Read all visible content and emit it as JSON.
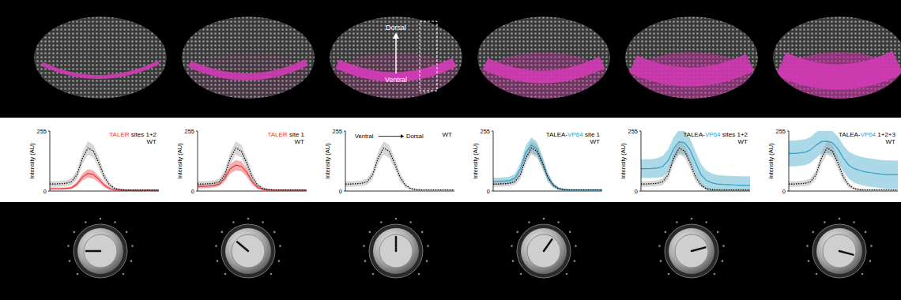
{
  "image_labels": {
    "top": "Dorsal",
    "bottom": "Ventral"
  },
  "chart_data": [
    {
      "type": "line",
      "ylabel": "Intensity (AU)",
      "xlim": [
        0,
        100
      ],
      "ylim": [
        0,
        255
      ],
      "yticks": [
        0,
        255
      ],
      "tick_labels": "y",
      "grid": false,
      "legend": "upper right",
      "x": [
        0,
        5,
        10,
        15,
        20,
        25,
        30,
        35,
        40,
        45,
        50,
        55,
        60,
        65,
        70,
        75,
        80,
        85,
        90,
        95,
        100
      ],
      "series": [
        {
          "name": "TALER sites 1+2",
          "color": "#e8383d",
          "line_style": "solid",
          "values": [
            10,
            10,
            10,
            11,
            14,
            30,
            60,
            75,
            70,
            50,
            25,
            10,
            5,
            4,
            3,
            3,
            3,
            3,
            3,
            3,
            3
          ],
          "errors": [
            5,
            5,
            5,
            5,
            6,
            10,
            15,
            18,
            17,
            14,
            10,
            6,
            3,
            2,
            2,
            2,
            2,
            2,
            2,
            2,
            2
          ]
        },
        {
          "name": "WT",
          "color": "#000000",
          "line_style": "dotted",
          "values": [
            30,
            30,
            31,
            33,
            40,
            70,
            140,
            183,
            170,
            120,
            60,
            25,
            10,
            6,
            5,
            5,
            5,
            5,
            5,
            5,
            5
          ],
          "errors": [
            12,
            12,
            12,
            12,
            14,
            20,
            25,
            28,
            27,
            24,
            18,
            10,
            6,
            4,
            3,
            3,
            3,
            3,
            3,
            3,
            3
          ]
        }
      ]
    },
    {
      "type": "line",
      "ylabel": "Intensity (AU)",
      "xlim": [
        0,
        100
      ],
      "ylim": [
        0,
        255
      ],
      "yticks": [
        0,
        255
      ],
      "tick_labels": "y",
      "grid": false,
      "legend": "upper right",
      "x": [
        0,
        5,
        10,
        15,
        20,
        25,
        30,
        35,
        40,
        45,
        50,
        55,
        60,
        65,
        70,
        75,
        80,
        85,
        90,
        95,
        100
      ],
      "series": [
        {
          "name": "TALER site 1",
          "color": "#e8383d",
          "line_style": "solid",
          "values": [
            20,
            20,
            21,
            23,
            30,
            55,
            95,
            110,
            105,
            80,
            40,
            15,
            7,
            5,
            4,
            4,
            4,
            4,
            4,
            4,
            4
          ],
          "errors": [
            8,
            8,
            8,
            8,
            9,
            14,
            20,
            22,
            21,
            18,
            12,
            7,
            4,
            3,
            2,
            2,
            2,
            2,
            2,
            2,
            2
          ]
        },
        {
          "name": "WT",
          "color": "#000000",
          "line_style": "dotted",
          "values": [
            30,
            30,
            31,
            33,
            40,
            70,
            140,
            183,
            170,
            120,
            60,
            25,
            10,
            6,
            5,
            5,
            5,
            5,
            5,
            5,
            5
          ],
          "errors": [
            12,
            12,
            12,
            12,
            14,
            20,
            25,
            28,
            27,
            24,
            18,
            10,
            6,
            4,
            3,
            3,
            3,
            3,
            3,
            3,
            3
          ]
        }
      ]
    },
    {
      "type": "line",
      "ylabel": "Intensity (AU)",
      "xlim": [
        0,
        100
      ],
      "ylim": [
        0,
        255
      ],
      "yticks": [
        0,
        255
      ],
      "tick_labels": "y",
      "grid": false,
      "legend": "upper right",
      "annotations": [
        "Ventral",
        "Dorsal"
      ],
      "x": [
        0,
        5,
        10,
        15,
        20,
        25,
        30,
        35,
        40,
        45,
        50,
        55,
        60,
        65,
        70,
        75,
        80,
        85,
        90,
        95,
        100
      ],
      "series": [
        {
          "name": "WT",
          "color": "#000000",
          "line_style": "dotted",
          "values": [
            30,
            30,
            31,
            33,
            40,
            70,
            140,
            183,
            170,
            120,
            60,
            25,
            10,
            6,
            5,
            5,
            5,
            5,
            5,
            5,
            5
          ],
          "errors": [
            12,
            12,
            12,
            12,
            14,
            20,
            25,
            28,
            27,
            24,
            18,
            10,
            6,
            4,
            3,
            3,
            3,
            3,
            3,
            3,
            3
          ]
        }
      ]
    },
    {
      "type": "line",
      "ylabel": "Intensity (AU)",
      "xlim": [
        0,
        100
      ],
      "ylim": [
        0,
        255
      ],
      "yticks": [
        0,
        255
      ],
      "tick_labels": "y",
      "grid": false,
      "legend": "upper right",
      "x": [
        0,
        5,
        10,
        15,
        20,
        25,
        30,
        35,
        40,
        45,
        50,
        55,
        60,
        65,
        70,
        75,
        80,
        85,
        90,
        95,
        100
      ],
      "series": [
        {
          "name": "TALEA-VP64 site 1",
          "color": "#2f9fc4",
          "line_style": "solid",
          "values": [
            42,
            42,
            43,
            45,
            55,
            95,
            165,
            195,
            180,
            125,
            60,
            25,
            10,
            6,
            5,
            5,
            5,
            5,
            5,
            5,
            5
          ],
          "errors": [
            15,
            15,
            15,
            16,
            18,
            25,
            30,
            32,
            30,
            25,
            18,
            10,
            6,
            4,
            3,
            3,
            3,
            3,
            3,
            3,
            3
          ]
        },
        {
          "name": "WT",
          "color": "#000000",
          "line_style": "dotted",
          "values": [
            30,
            30,
            31,
            33,
            40,
            70,
            140,
            183,
            170,
            120,
            60,
            25,
            10,
            6,
            5,
            5,
            5,
            5,
            5,
            5,
            5
          ],
          "errors": [
            12,
            12,
            12,
            12,
            14,
            20,
            25,
            28,
            27,
            24,
            18,
            10,
            6,
            4,
            3,
            3,
            3,
            3,
            3,
            3,
            3
          ]
        }
      ]
    },
    {
      "type": "line",
      "ylabel": "Intensity (AU)",
      "xlim": [
        0,
        100
      ],
      "ylim": [
        0,
        255
      ],
      "yticks": [
        0,
        255
      ],
      "tick_labels": "y",
      "grid": false,
      "legend": "upper right",
      "x": [
        0,
        5,
        10,
        15,
        20,
        25,
        30,
        35,
        40,
        45,
        50,
        55,
        60,
        65,
        70,
        75,
        80,
        85,
        90,
        95,
        100
      ],
      "series": [
        {
          "name": "TALEA-VP64 sites 1+2",
          "color": "#2f9fc4",
          "line_style": "solid",
          "values": [
            95,
            95,
            96,
            98,
            105,
            130,
            180,
            210,
            205,
            175,
            120,
            70,
            45,
            35,
            30,
            28,
            27,
            26,
            25,
            25,
            25
          ],
          "errors": [
            40,
            40,
            40,
            42,
            45,
            48,
            50,
            50,
            50,
            50,
            48,
            45,
            42,
            40,
            38,
            38,
            38,
            38,
            38,
            38,
            38
          ]
        },
        {
          "name": "WT",
          "color": "#000000",
          "line_style": "dotted",
          "values": [
            30,
            30,
            31,
            33,
            40,
            70,
            140,
            183,
            170,
            120,
            60,
            25,
            10,
            6,
            5,
            5,
            5,
            5,
            5,
            5,
            5
          ],
          "errors": [
            12,
            12,
            12,
            12,
            14,
            20,
            25,
            28,
            27,
            24,
            18,
            10,
            6,
            4,
            3,
            3,
            3,
            3,
            3,
            3,
            3
          ]
        }
      ]
    },
    {
      "type": "line",
      "ylabel": "Intensity (AU)",
      "xlim": [
        0,
        100
      ],
      "ylim": [
        0,
        255
      ],
      "yticks": [
        0,
        255
      ],
      "tick_labels": "y",
      "grid": false,
      "legend": "upper right",
      "x": [
        0,
        5,
        10,
        15,
        20,
        25,
        30,
        35,
        40,
        45,
        50,
        55,
        60,
        65,
        70,
        75,
        80,
        85,
        90,
        95,
        100
      ],
      "series": [
        {
          "name": "TALEA-VP64 1+2+3",
          "color": "#2f9fc4",
          "line_style": "solid",
          "values": [
            160,
            160,
            162,
            165,
            175,
            195,
            210,
            212,
            205,
            180,
            140,
            110,
            95,
            88,
            82,
            78,
            75,
            72,
            70,
            70,
            70
          ],
          "errors": [
            55,
            55,
            55,
            55,
            55,
            55,
            52,
            50,
            50,
            52,
            55,
            58,
            60,
            60,
            60,
            60,
            60,
            60,
            60,
            60,
            60
          ]
        },
        {
          "name": "WT",
          "color": "#000000",
          "line_style": "dotted",
          "values": [
            30,
            30,
            31,
            33,
            40,
            70,
            140,
            183,
            170,
            120,
            60,
            25,
            10,
            6,
            5,
            5,
            5,
            5,
            5,
            5,
            5
          ],
          "errors": [
            12,
            12,
            12,
            12,
            14,
            20,
            25,
            28,
            27,
            24,
            18,
            10,
            6,
            4,
            3,
            3,
            3,
            3,
            3,
            3,
            3
          ]
        }
      ]
    }
  ]
}
